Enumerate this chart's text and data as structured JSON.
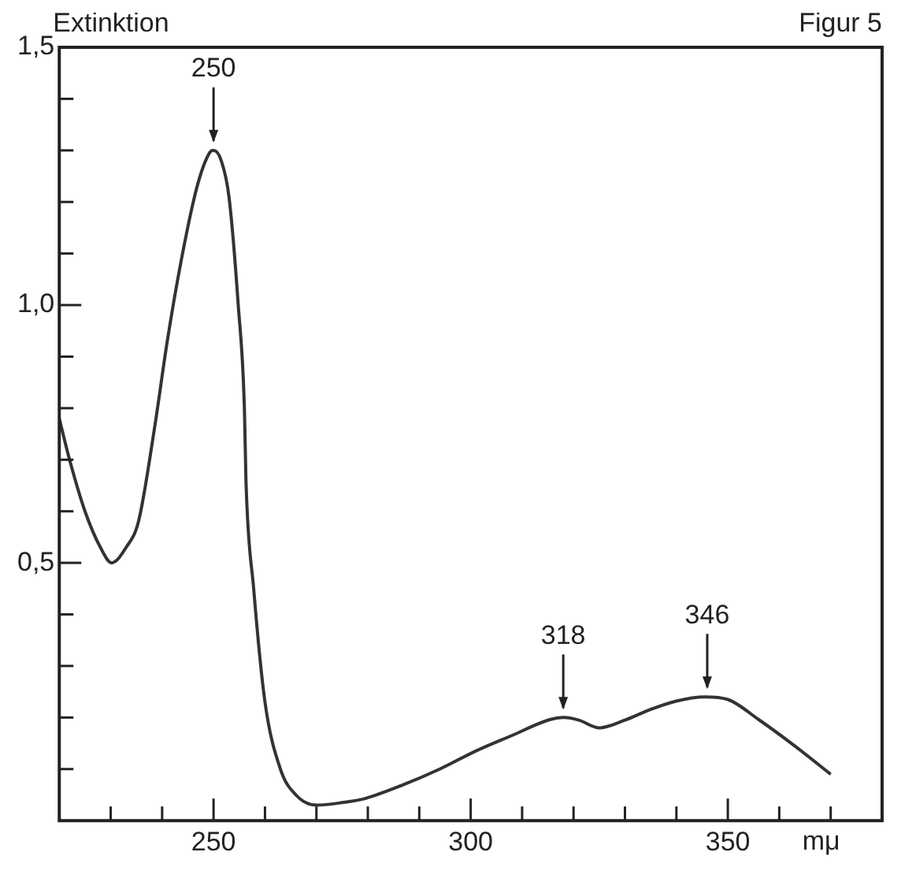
{
  "chart_data": {
    "type": "line",
    "title": "Figur 5",
    "xlabel": "mμ",
    "ylabel": "Extinktion",
    "x": [
      220,
      222,
      225,
      228,
      230.2,
      233,
      235.4,
      238.5,
      241,
      243.7,
      246.8,
      249.2,
      250,
      251.5,
      253,
      254.8,
      256,
      256.3,
      257.8,
      260,
      263,
      266,
      270,
      275,
      279.5,
      287,
      294,
      301,
      308,
      315.4,
      318,
      321,
      325,
      330,
      334.8,
      340,
      345.5,
      350,
      356,
      363,
      370
    ],
    "series": [
      {
        "color": "#333333",
        "values": [
          0.78,
          0.7,
          0.6,
          0.53,
          0.5,
          0.53,
          0.58,
          0.76,
          0.93,
          1.086,
          1.23,
          1.295,
          1.3,
          1.28,
          1.21,
          1.0,
          0.8,
          0.66,
          0.45,
          0.23,
          0.1,
          0.05,
          0.03,
          0.035,
          0.043,
          0.07,
          0.1,
          0.135,
          0.165,
          0.196,
          0.2,
          0.195,
          0.18,
          0.195,
          0.215,
          0.232,
          0.24,
          0.235,
          0.196,
          0.145,
          0.09
        ]
      }
    ],
    "xlim": [
      220,
      380
    ],
    "xticks": [
      {
        "value": 230,
        "label": null
      },
      {
        "value": 240,
        "label": null
      },
      250,
      {
        "value": 260,
        "label": null
      },
      {
        "value": 270,
        "label": null
      },
      {
        "value": 280,
        "label": null
      },
      {
        "value": 290,
        "label": null
      },
      300,
      {
        "value": 310,
        "label": null
      },
      {
        "value": 320,
        "label": null
      },
      {
        "value": 330,
        "label": null
      },
      {
        "value": 340,
        "label": null
      },
      350,
      {
        "value": 360,
        "label": null
      },
      {
        "value": 370,
        "label": null
      }
    ],
    "ylim": [
      0,
      1.5
    ],
    "yticks": [
      {
        "value": 0.1,
        "label": null
      },
      {
        "value": 0.2,
        "label": null
      },
      {
        "value": 0.3,
        "label": null
      },
      {
        "value": 0.4,
        "label": null
      },
      {
        "value": 0.5,
        "label": "0,5"
      },
      {
        "value": 0.6,
        "label": null
      },
      {
        "value": 0.7,
        "label": null
      },
      {
        "value": 0.8,
        "label": null
      },
      {
        "value": 0.9,
        "label": null
      },
      {
        "value": 1.0,
        "label": "1,0"
      },
      {
        "value": 1.1,
        "label": null
      },
      {
        "value": 1.2,
        "label": null
      },
      {
        "value": 1.3,
        "label": null
      },
      {
        "value": 1.4,
        "label": null
      },
      {
        "value": 1.5,
        "label": "1,5"
      }
    ],
    "annotations": [
      {
        "text": "250",
        "x": 250,
        "y": 1.3
      },
      {
        "text": "318",
        "x": 318,
        "y": 0.2
      },
      {
        "text": "346",
        "x": 346,
        "y": 0.24
      }
    ],
    "grid": false,
    "legend": false,
    "marker": "none",
    "line_style": "solid"
  }
}
